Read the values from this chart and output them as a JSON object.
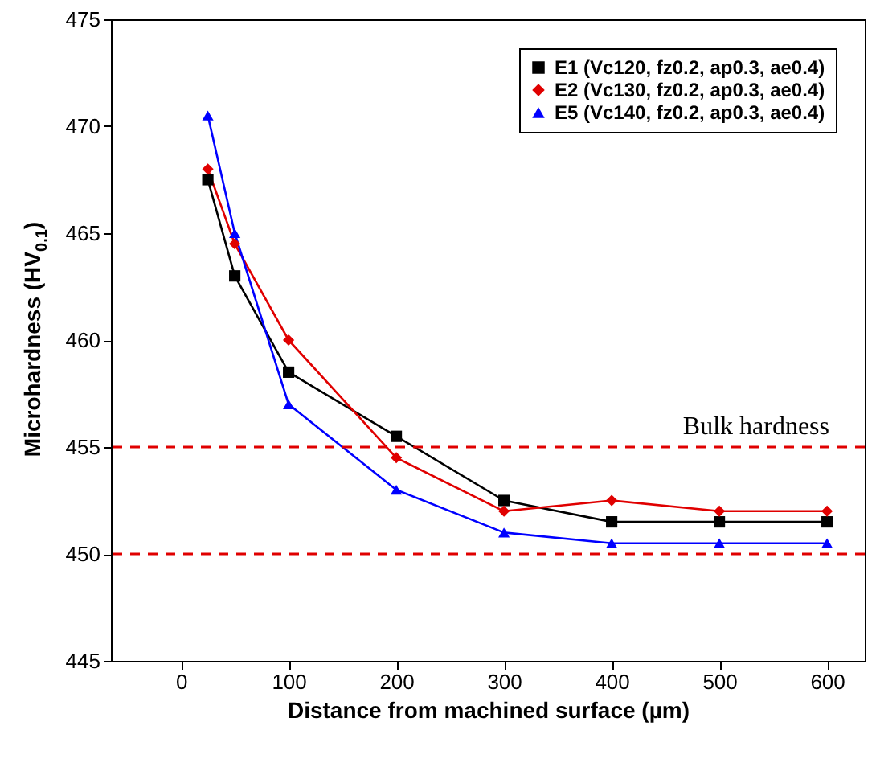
{
  "chart_data": {
    "type": "line",
    "xlabel": "Distance from machined surface (µm)",
    "ylabel": "Microhardness (HV$_{0.1}$)",
    "x": [
      25,
      50,
      100,
      200,
      300,
      400,
      500,
      600
    ],
    "series": [
      {
        "name": "E1 (Vc120, fz0.2, ap0.3, ae0.4)",
        "color": "#000000",
        "marker": "square",
        "values": [
          467.5,
          463,
          458.5,
          455.5,
          452.5,
          451.5,
          451.5,
          451.5
        ]
      },
      {
        "name": "E2 (Vc130, fz0.2, ap0.3, ae0.4)",
        "color": "#e00000",
        "marker": "diamond",
        "values": [
          468,
          464.5,
          460,
          454.5,
          452,
          452.5,
          452,
          452
        ]
      },
      {
        "name": "E5 (Vc140, fz0.2, ap0.3, ae0.4)",
        "color": "#0000ff",
        "marker": "triangle",
        "values": [
          470.5,
          465,
          457,
          453,
          451,
          450.5,
          450.5,
          450.5
        ]
      }
    ],
    "xlim": [
      -65,
      635
    ],
    "xticks": [
      0,
      100,
      200,
      300,
      400,
      500,
      600
    ],
    "ylim": [
      445,
      475
    ],
    "yticks": [
      445,
      450,
      455,
      460,
      465,
      470,
      475
    ],
    "ref_lines": [
      {
        "axis": "y",
        "value": 455,
        "label": "Bulk hardness",
        "color": "#e00000",
        "line_style": "dashed"
      },
      {
        "axis": "y",
        "value": 450,
        "color": "#e00000",
        "line_style": "dashed"
      }
    ],
    "grid": false,
    "legend": "top right",
    "line_style": "solid"
  }
}
